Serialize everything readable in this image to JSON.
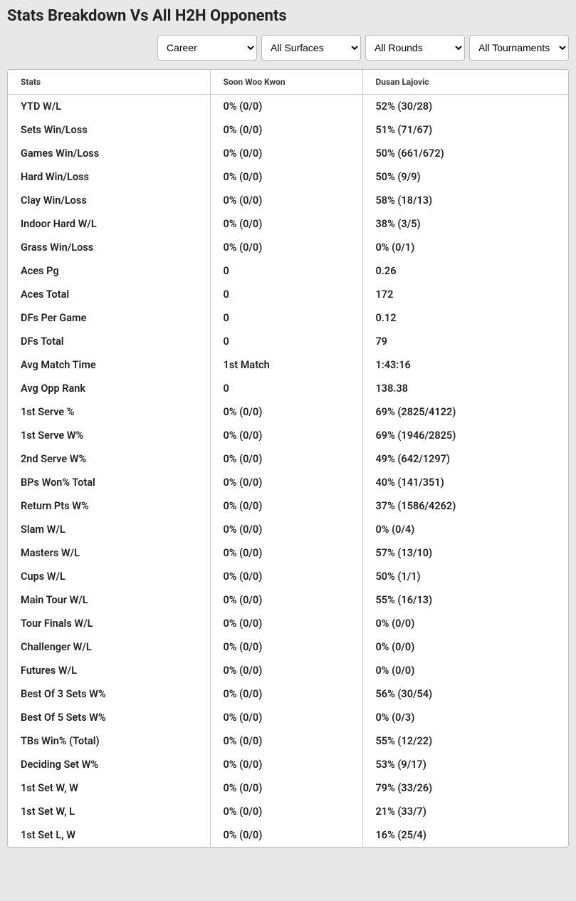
{
  "title": "Stats Breakdown Vs All H2H Opponents",
  "filters": {
    "career": "Career",
    "surfaces": "All Surfaces",
    "rounds": "All Rounds",
    "tournaments": "All Tournaments"
  },
  "columns": {
    "stats": "Stats",
    "player1": "Soon Woo Kwon",
    "player2": "Dusan Lajovic"
  },
  "rows": [
    {
      "stat": "YTD W/L",
      "p1": "0% (0/0)",
      "p2": "52% (30/28)"
    },
    {
      "stat": "Sets Win/Loss",
      "p1": "0% (0/0)",
      "p2": "51% (71/67)"
    },
    {
      "stat": "Games Win/Loss",
      "p1": "0% (0/0)",
      "p2": "50% (661/672)"
    },
    {
      "stat": "Hard Win/Loss",
      "p1": "0% (0/0)",
      "p2": "50% (9/9)"
    },
    {
      "stat": "Clay Win/Loss",
      "p1": "0% (0/0)",
      "p2": "58% (18/13)"
    },
    {
      "stat": "Indoor Hard W/L",
      "p1": "0% (0/0)",
      "p2": "38% (3/5)"
    },
    {
      "stat": "Grass Win/Loss",
      "p1": "0% (0/0)",
      "p2": "0% (0/1)"
    },
    {
      "stat": "Aces Pg",
      "p1": "0",
      "p2": "0.26"
    },
    {
      "stat": "Aces Total",
      "p1": "0",
      "p2": "172"
    },
    {
      "stat": "DFs Per Game",
      "p1": "0",
      "p2": "0.12"
    },
    {
      "stat": "DFs Total",
      "p1": "0",
      "p2": "79"
    },
    {
      "stat": "Avg Match Time",
      "p1": "1st Match",
      "p2": "1:43:16"
    },
    {
      "stat": "Avg Opp Rank",
      "p1": "0",
      "p2": "138.38"
    },
    {
      "stat": "1st Serve %",
      "p1": "0% (0/0)",
      "p2": "69% (2825/4122)"
    },
    {
      "stat": "1st Serve W%",
      "p1": "0% (0/0)",
      "p2": "69% (1946/2825)"
    },
    {
      "stat": "2nd Serve W%",
      "p1": "0% (0/0)",
      "p2": "49% (642/1297)"
    },
    {
      "stat": "BPs Won% Total",
      "p1": "0% (0/0)",
      "p2": "40% (141/351)"
    },
    {
      "stat": "Return Pts W%",
      "p1": "0% (0/0)",
      "p2": "37% (1586/4262)"
    },
    {
      "stat": "Slam W/L",
      "p1": "0% (0/0)",
      "p2": "0% (0/4)"
    },
    {
      "stat": "Masters W/L",
      "p1": "0% (0/0)",
      "p2": "57% (13/10)"
    },
    {
      "stat": "Cups W/L",
      "p1": "0% (0/0)",
      "p2": "50% (1/1)"
    },
    {
      "stat": "Main Tour W/L",
      "p1": "0% (0/0)",
      "p2": "55% (16/13)"
    },
    {
      "stat": "Tour Finals W/L",
      "p1": "0% (0/0)",
      "p2": "0% (0/0)"
    },
    {
      "stat": "Challenger W/L",
      "p1": "0% (0/0)",
      "p2": "0% (0/0)"
    },
    {
      "stat": "Futures W/L",
      "p1": "0% (0/0)",
      "p2": "0% (0/0)"
    },
    {
      "stat": "Best Of 3 Sets W%",
      "p1": "0% (0/0)",
      "p2": "56% (30/54)"
    },
    {
      "stat": "Best Of 5 Sets W%",
      "p1": "0% (0/0)",
      "p2": "0% (0/3)"
    },
    {
      "stat": "TBs Win% (Total)",
      "p1": "0% (0/0)",
      "p2": "55% (12/22)"
    },
    {
      "stat": "Deciding Set W%",
      "p1": "0% (0/0)",
      "p2": "53% (9/17)"
    },
    {
      "stat": "1st Set W, W",
      "p1": "0% (0/0)",
      "p2": "79% (33/26)"
    },
    {
      "stat": "1st Set W, L",
      "p1": "0% (0/0)",
      "p2": "21% (33/7)"
    },
    {
      "stat": "1st Set L, W",
      "p1": "0% (0/0)",
      "p2": "16% (25/4)"
    }
  ]
}
